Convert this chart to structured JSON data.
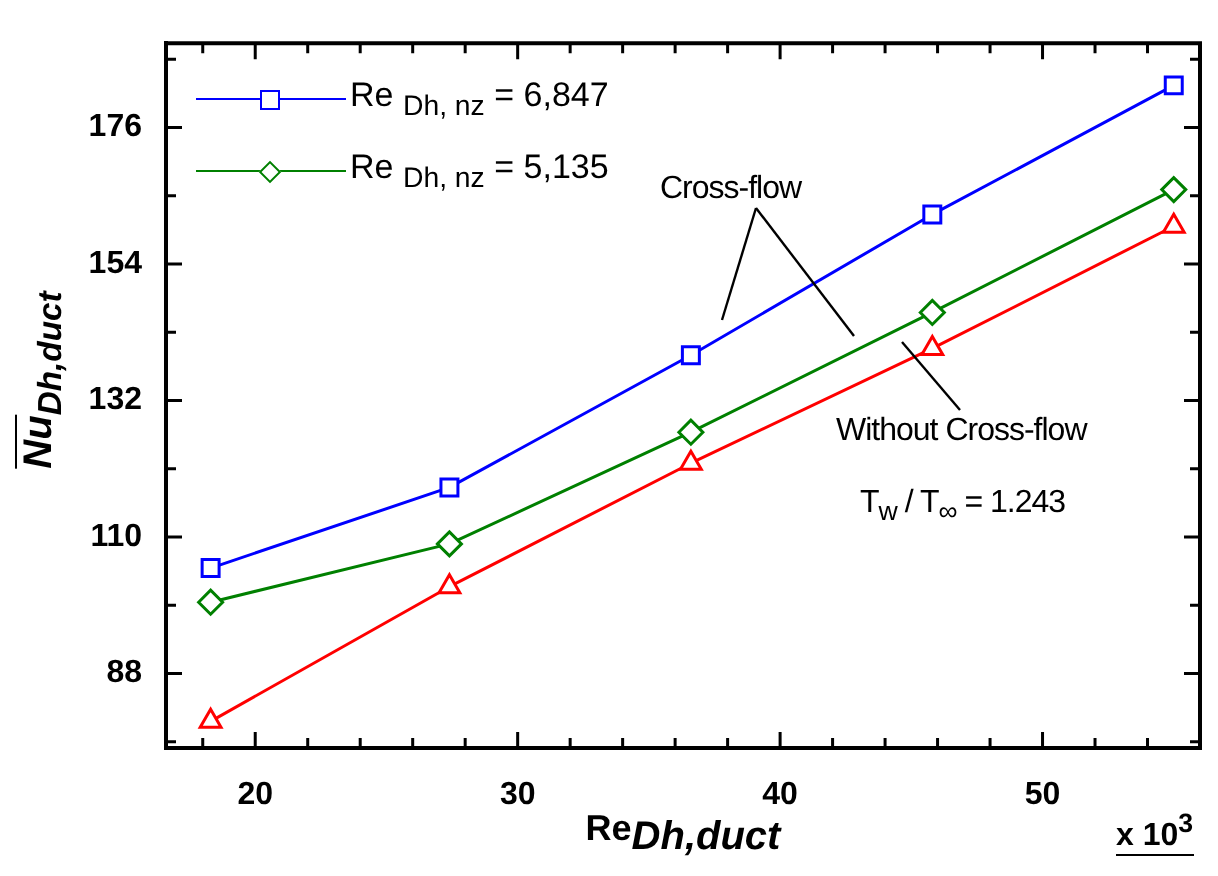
{
  "chart_data": {
    "type": "line",
    "xlabel": "Re$_{Dh,duct}$",
    "ylabel": "Nu$_{Dh,duct}$",
    "x": [
      18.3,
      27.4,
      36.6,
      45.8,
      55.0
    ],
    "series": [
      {
        "name": "Re $_{Dh, nz}$ = 6,847",
        "color": "#0000ff",
        "marker": "square",
        "values": [
          105.0,
          118.0,
          139.3,
          162.0,
          182.8
        ]
      },
      {
        "name": "Re $_{Dh, nz}$ = 5,135",
        "color": "#008000",
        "marker": "diamond",
        "values": [
          99.5,
          108.9,
          126.9,
          146.2,
          166.0
        ]
      },
      {
        "color": "#ff0000",
        "marker": "triangle",
        "values": [
          80.3,
          102.0,
          121.9,
          140.4,
          160.1
        ]
      }
    ],
    "xlim": [
      16.6,
      56.0
    ],
    "xticks": [
      20,
      30,
      40,
      50
    ],
    "ylim": [
      76,
      189.6
    ],
    "yticks": [
      88,
      110,
      132,
      154,
      176
    ],
    "grid": false,
    "legend": "top left",
    "line_style": "solid",
    "annotations": [
      "Cross-flow",
      "Without Cross-flow",
      "T$_{w}$ / T$_{∞}$ = 1.243",
      "x 10$^{3}$"
    ]
  }
}
